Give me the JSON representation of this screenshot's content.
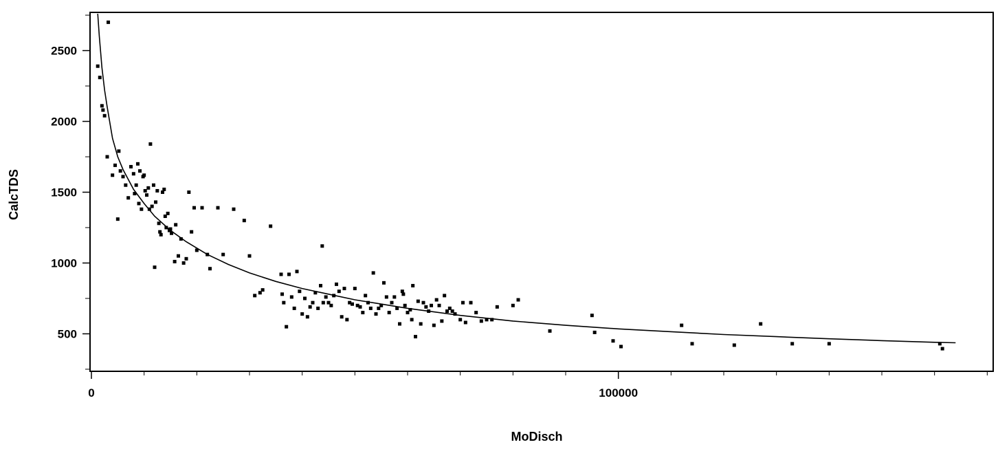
{
  "chart_data": {
    "type": "scatter",
    "title": "",
    "xlabel": "MoDisch",
    "ylabel": "CalcTDS",
    "xlim": [
      0,
      171000
    ],
    "ylim": [
      245,
      2760
    ],
    "x_ticks": [
      0,
      100000
    ],
    "x_tick_labels": [
      "0",
      "100000"
    ],
    "y_ticks": [
      500,
      1000,
      1500,
      2000,
      2500
    ],
    "y_tick_labels": [
      "500",
      "1000",
      "1500",
      "2000",
      "2500"
    ],
    "grid": false,
    "legend": "none",
    "colors": {
      "points": "#000000",
      "fit_line": "#000000",
      "frame": "#000000"
    },
    "series": [
      {
        "type": "scatter",
        "points": [
          [
            1200,
            2390
          ],
          [
            1600,
            2310
          ],
          [
            2000,
            2110
          ],
          [
            2200,
            2080
          ],
          [
            2500,
            2040
          ],
          [
            3000,
            1750
          ],
          [
            3200,
            2700
          ],
          [
            4000,
            1620
          ],
          [
            4500,
            1690
          ],
          [
            5000,
            1310
          ],
          [
            5200,
            1790
          ],
          [
            5500,
            1650
          ],
          [
            6000,
            1610
          ],
          [
            6500,
            1550
          ],
          [
            7000,
            1460
          ],
          [
            7500,
            1680
          ],
          [
            8000,
            1630
          ],
          [
            8200,
            1490
          ],
          [
            8500,
            1550
          ],
          [
            8800,
            1700
          ],
          [
            9000,
            1420
          ],
          [
            9200,
            1650
          ],
          [
            9500,
            1380
          ],
          [
            9800,
            1610
          ],
          [
            10000,
            1620
          ],
          [
            10200,
            1510
          ],
          [
            10500,
            1480
          ],
          [
            10800,
            1530
          ],
          [
            11000,
            1380
          ],
          [
            11200,
            1840
          ],
          [
            11500,
            1400
          ],
          [
            11800,
            1550
          ],
          [
            12000,
            970
          ],
          [
            12200,
            1430
          ],
          [
            12500,
            1510
          ],
          [
            12800,
            1280
          ],
          [
            13000,
            1220
          ],
          [
            13200,
            1200
          ],
          [
            13500,
            1500
          ],
          [
            13800,
            1520
          ],
          [
            14000,
            1330
          ],
          [
            14200,
            1250
          ],
          [
            14500,
            1350
          ],
          [
            14800,
            1230
          ],
          [
            15000,
            1240
          ],
          [
            15200,
            1210
          ],
          [
            15800,
            1010
          ],
          [
            16000,
            1270
          ],
          [
            16500,
            1050
          ],
          [
            17000,
            1170
          ],
          [
            17500,
            1000
          ],
          [
            18000,
            1030
          ],
          [
            18500,
            1500
          ],
          [
            19000,
            1220
          ],
          [
            19500,
            1390
          ],
          [
            20000,
            1090
          ],
          [
            21000,
            1390
          ],
          [
            22000,
            1060
          ],
          [
            22500,
            960
          ],
          [
            24000,
            1390
          ],
          [
            25000,
            1060
          ],
          [
            27000,
            1380
          ],
          [
            29000,
            1300
          ],
          [
            30000,
            1050
          ],
          [
            31000,
            770
          ],
          [
            32000,
            790
          ],
          [
            32500,
            810
          ],
          [
            34000,
            1260
          ],
          [
            36000,
            920
          ],
          [
            36200,
            780
          ],
          [
            36500,
            720
          ],
          [
            37000,
            550
          ],
          [
            37500,
            920
          ],
          [
            38000,
            760
          ],
          [
            38500,
            680
          ],
          [
            39000,
            940
          ],
          [
            39500,
            800
          ],
          [
            40000,
            640
          ],
          [
            40500,
            750
          ],
          [
            41000,
            620
          ],
          [
            41500,
            690
          ],
          [
            42000,
            720
          ],
          [
            42500,
            790
          ],
          [
            43000,
            680
          ],
          [
            43500,
            840
          ],
          [
            43800,
            1120
          ],
          [
            44000,
            720
          ],
          [
            44500,
            760
          ],
          [
            45000,
            720
          ],
          [
            45500,
            700
          ],
          [
            46000,
            770
          ],
          [
            46500,
            850
          ],
          [
            47000,
            800
          ],
          [
            47500,
            620
          ],
          [
            48000,
            820
          ],
          [
            48500,
            600
          ],
          [
            49000,
            720
          ],
          [
            49500,
            710
          ],
          [
            50000,
            820
          ],
          [
            50500,
            700
          ],
          [
            51000,
            690
          ],
          [
            51500,
            650
          ],
          [
            52000,
            770
          ],
          [
            52500,
            720
          ],
          [
            53000,
            680
          ],
          [
            53500,
            930
          ],
          [
            54000,
            640
          ],
          [
            54500,
            680
          ],
          [
            55000,
            700
          ],
          [
            55500,
            860
          ],
          [
            56000,
            760
          ],
          [
            56500,
            650
          ],
          [
            57000,
            720
          ],
          [
            57500,
            760
          ],
          [
            58000,
            680
          ],
          [
            58500,
            570
          ],
          [
            59000,
            800
          ],
          [
            59200,
            780
          ],
          [
            59500,
            700
          ],
          [
            60000,
            650
          ],
          [
            60500,
            670
          ],
          [
            60800,
            600
          ],
          [
            61000,
            840
          ],
          [
            61500,
            480
          ],
          [
            62000,
            730
          ],
          [
            62500,
            570
          ],
          [
            63000,
            720
          ],
          [
            63500,
            690
          ],
          [
            64000,
            660
          ],
          [
            64500,
            700
          ],
          [
            65000,
            560
          ],
          [
            65500,
            740
          ],
          [
            66000,
            700
          ],
          [
            66500,
            590
          ],
          [
            67000,
            770
          ],
          [
            67500,
            660
          ],
          [
            68000,
            680
          ],
          [
            68500,
            660
          ],
          [
            69000,
            640
          ],
          [
            70000,
            600
          ],
          [
            70500,
            720
          ],
          [
            71000,
            580
          ],
          [
            72000,
            720
          ],
          [
            73000,
            650
          ],
          [
            74000,
            590
          ],
          [
            75000,
            600
          ],
          [
            76000,
            600
          ],
          [
            77000,
            690
          ],
          [
            80000,
            700
          ],
          [
            81000,
            740
          ],
          [
            87000,
            520
          ],
          [
            95000,
            630
          ],
          [
            95500,
            510
          ],
          [
            99000,
            450
          ],
          [
            100500,
            410
          ],
          [
            112000,
            560
          ],
          [
            114000,
            430
          ],
          [
            122000,
            420
          ],
          [
            127000,
            570
          ],
          [
            133000,
            430
          ],
          [
            140000,
            430
          ],
          [
            161000,
            430
          ],
          [
            161500,
            395
          ]
        ]
      },
      {
        "type": "line",
        "points": [
          [
            1200,
            2760
          ],
          [
            1500,
            2600
          ],
          [
            2000,
            2380
          ],
          [
            2500,
            2220
          ],
          [
            3000,
            2100
          ],
          [
            4000,
            1880
          ],
          [
            5000,
            1750
          ],
          [
            6000,
            1660
          ],
          [
            8000,
            1520
          ],
          [
            10000,
            1420
          ],
          [
            12000,
            1330
          ],
          [
            15000,
            1230
          ],
          [
            18000,
            1150
          ],
          [
            22000,
            1060
          ],
          [
            26000,
            990
          ],
          [
            30000,
            930
          ],
          [
            35000,
            870
          ],
          [
            40000,
            820
          ],
          [
            45000,
            780
          ],
          [
            50000,
            740
          ],
          [
            55000,
            710
          ],
          [
            60000,
            680
          ],
          [
            65000,
            655
          ],
          [
            70000,
            630
          ],
          [
            80000,
            590
          ],
          [
            90000,
            560
          ],
          [
            100000,
            535
          ],
          [
            110000,
            515
          ],
          [
            120000,
            495
          ],
          [
            130000,
            480
          ],
          [
            140000,
            465
          ],
          [
            150000,
            452
          ],
          [
            160000,
            440
          ],
          [
            164000,
            437
          ]
        ]
      }
    ]
  }
}
